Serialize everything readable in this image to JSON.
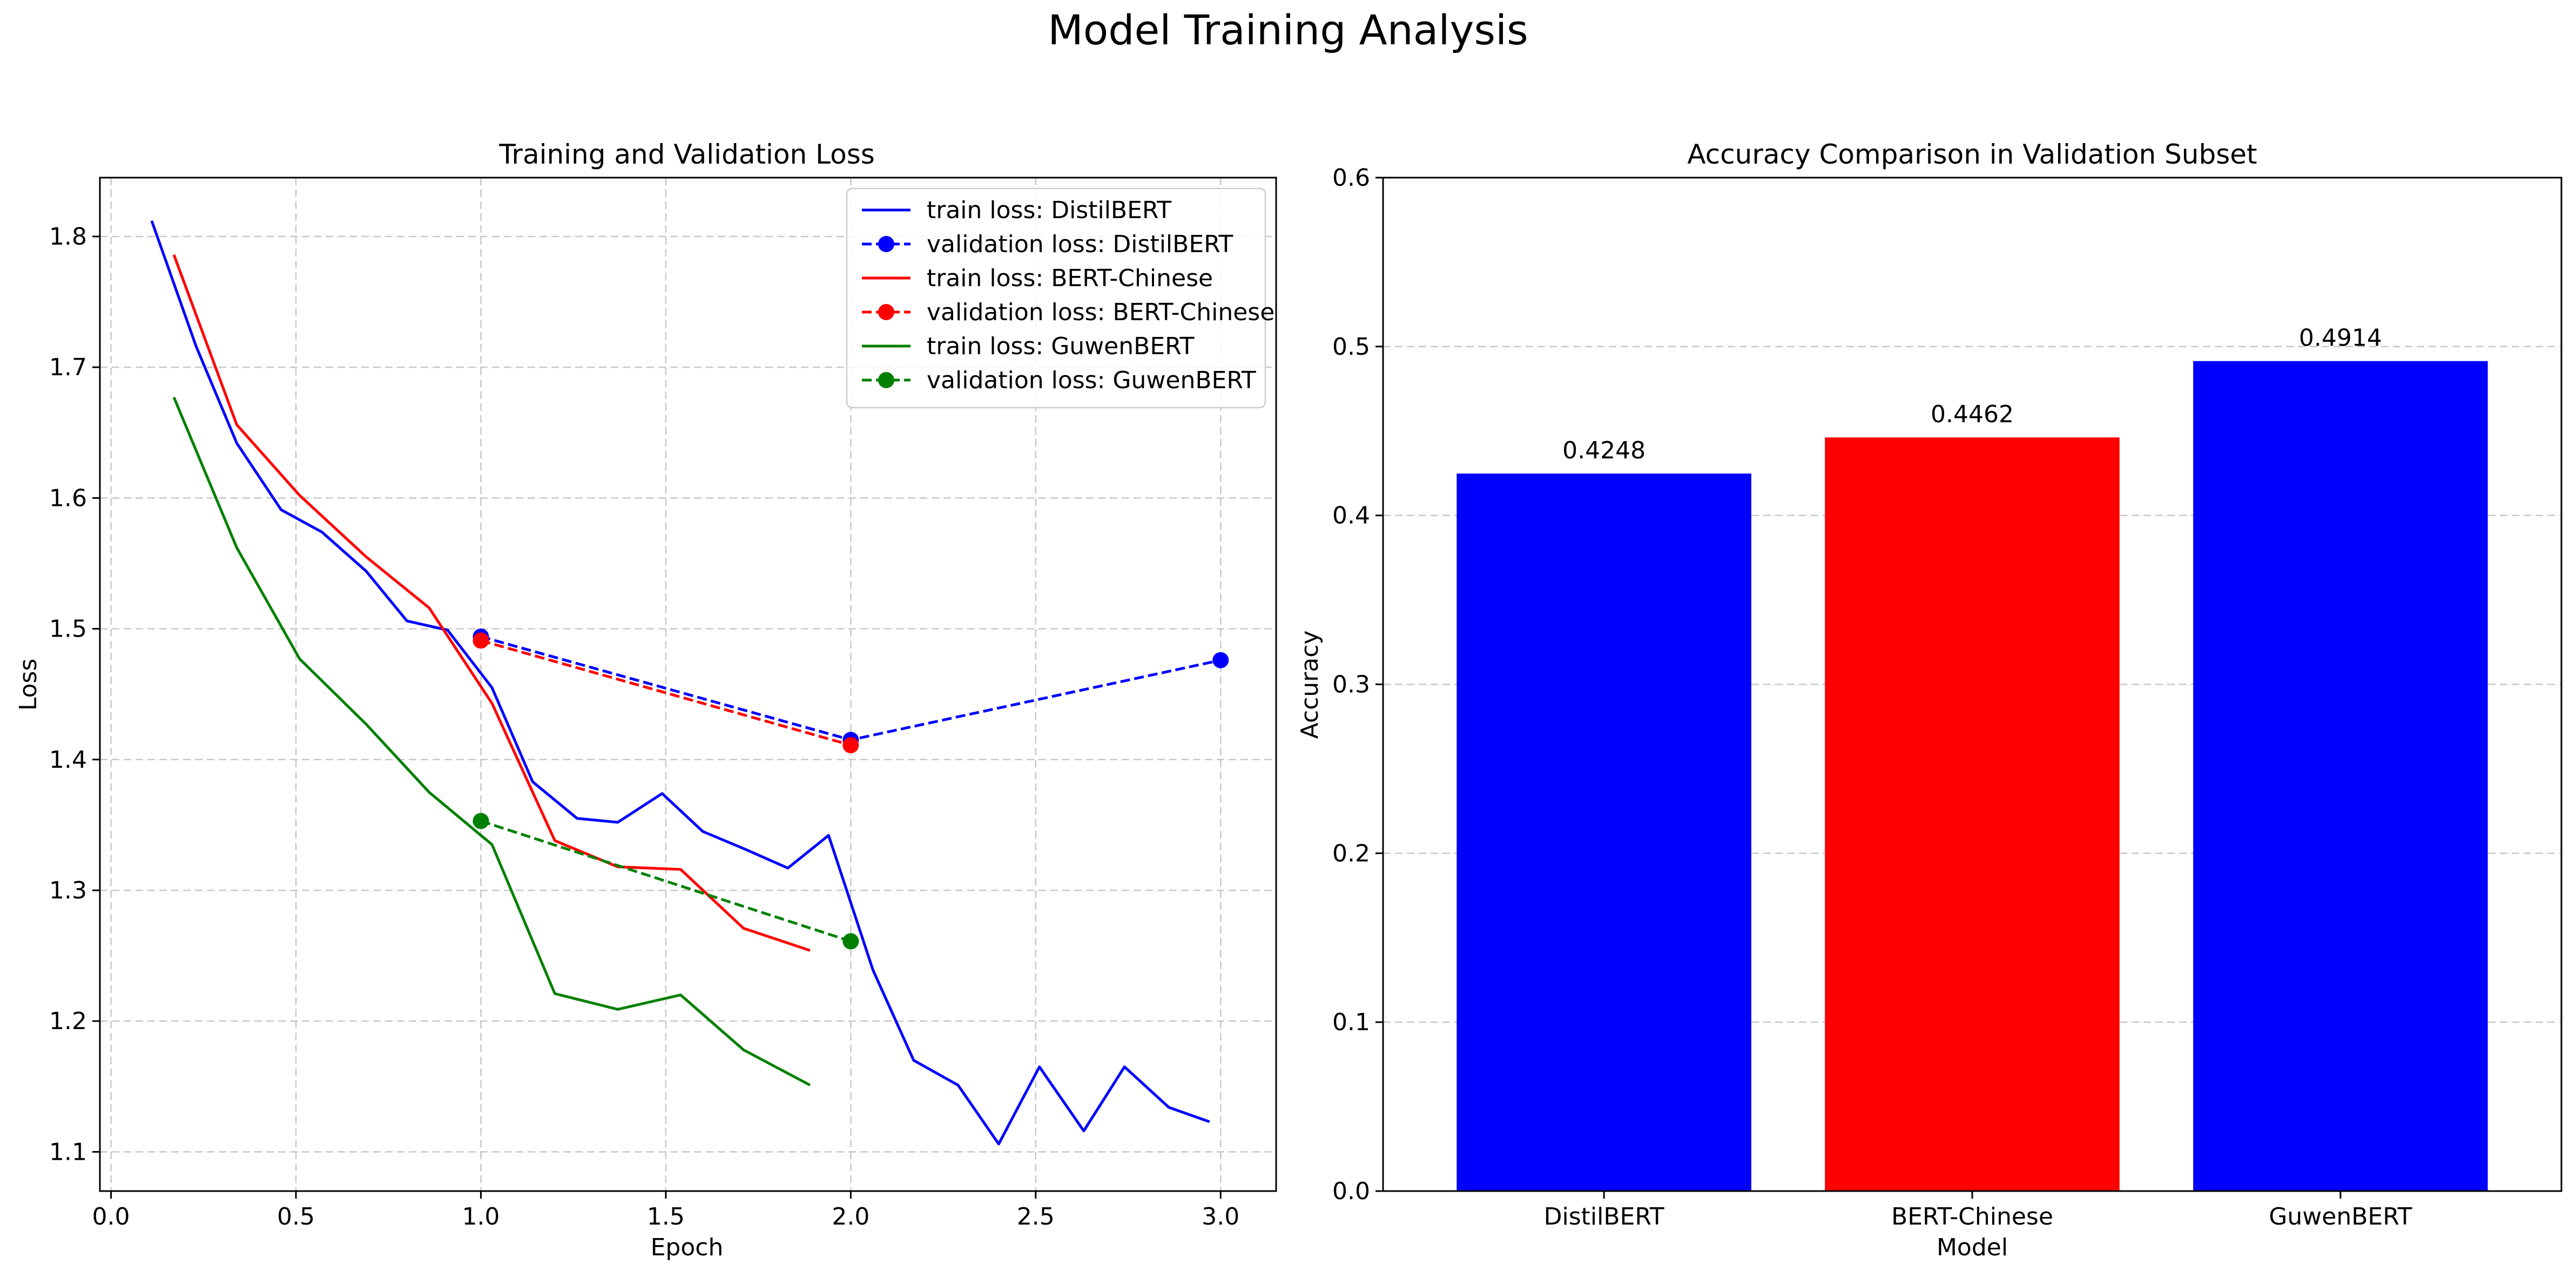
{
  "figure": {
    "title": "Model Training Analysis"
  },
  "chart_data": [
    {
      "type": "line",
      "title": "Training and Validation Loss",
      "xlabel": "Epoch",
      "ylabel": "Loss",
      "xlim": [
        -0.03,
        3.15
      ],
      "ylim": [
        1.07,
        1.845
      ],
      "xticks": [
        0.0,
        0.5,
        1.0,
        1.5,
        2.0,
        2.5,
        3.0
      ],
      "yticks": [
        1.1,
        1.2,
        1.3,
        1.4,
        1.5,
        1.6,
        1.7,
        1.8
      ],
      "grid": true,
      "legend_position": "top-right",
      "series": [
        {
          "name": "train loss: DistilBERT",
          "color": "#0000ff",
          "style": "solid",
          "markers": false,
          "x": [
            0.11,
            0.23,
            0.34,
            0.46,
            0.57,
            0.69,
            0.8,
            0.91,
            1.03,
            1.14,
            1.26,
            1.37,
            1.49,
            1.6,
            1.71,
            1.83,
            1.94,
            2.06,
            2.17,
            2.29,
            2.4,
            2.51,
            2.63,
            2.74,
            2.86,
            2.97
          ],
          "y": [
            1.812,
            1.716,
            1.642,
            1.591,
            1.574,
            1.544,
            1.506,
            1.499,
            1.455,
            1.383,
            1.355,
            1.352,
            1.374,
            1.345,
            1.332,
            1.317,
            1.342,
            1.239,
            1.17,
            1.151,
            1.106,
            1.165,
            1.116,
            1.165,
            1.134,
            1.123
          ]
        },
        {
          "name": "validation loss: DistilBERT",
          "color": "#0000ff",
          "style": "dashed",
          "markers": true,
          "x": [
            1.0,
            2.0,
            3.0
          ],
          "y": [
            1.494,
            1.415,
            1.476
          ]
        },
        {
          "name": "train loss: BERT-Chinese",
          "color": "#ff0000",
          "style": "solid",
          "markers": false,
          "x": [
            0.17,
            0.34,
            0.51,
            0.69,
            0.86,
            1.03,
            1.2,
            1.37,
            1.54,
            1.71,
            1.89
          ],
          "y": [
            1.786,
            1.656,
            1.602,
            1.555,
            1.516,
            1.443,
            1.338,
            1.318,
            1.316,
            1.271,
            1.254
          ]
        },
        {
          "name": "validation loss: BERT-Chinese",
          "color": "#ff0000",
          "style": "dashed",
          "markers": true,
          "x": [
            1.0,
            2.0
          ],
          "y": [
            1.491,
            1.411
          ]
        },
        {
          "name": "train loss: GuwenBERT",
          "color": "#008000",
          "style": "solid",
          "markers": false,
          "x": [
            0.17,
            0.34,
            0.51,
            0.69,
            0.86,
            1.03,
            1.2,
            1.37,
            1.54,
            1.71,
            1.89
          ],
          "y": [
            1.677,
            1.562,
            1.477,
            1.427,
            1.375,
            1.335,
            1.221,
            1.209,
            1.22,
            1.178,
            1.151
          ]
        },
        {
          "name": "validation loss: GuwenBERT",
          "color": "#008000",
          "style": "dashed",
          "markers": true,
          "x": [
            1.0,
            2.0
          ],
          "y": [
            1.353,
            1.261
          ]
        }
      ]
    },
    {
      "type": "bar",
      "title": "Accuracy Comparison in Validation Subset",
      "xlabel": "Model",
      "ylabel": "Accuracy",
      "ylim": [
        0.0,
        0.6
      ],
      "yticks": [
        0.0,
        0.1,
        0.2,
        0.3,
        0.4,
        0.5,
        0.6
      ],
      "grid": true,
      "categories": [
        "DistilBERT",
        "BERT-Chinese",
        "GuwenBERT"
      ],
      "values": [
        0.4248,
        0.4462,
        0.4914
      ],
      "value_labels": [
        "0.4248",
        "0.4462",
        "0.4914"
      ],
      "colors": [
        "#0000ff",
        "#ff0000",
        "#0000ff"
      ]
    }
  ]
}
